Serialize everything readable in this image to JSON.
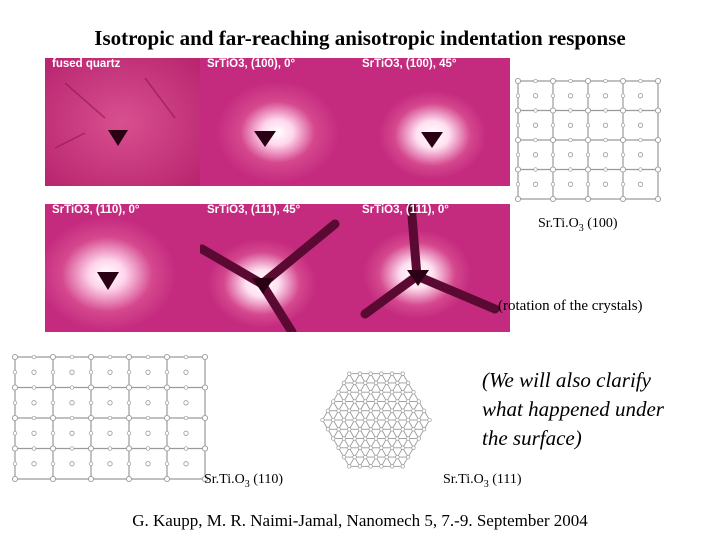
{
  "title": "Isotropic and far-reaching anisotropic indentation response",
  "panels": [
    {
      "label": "fused quartz"
    },
    {
      "label": "SrTiO3, (100), 0°"
    },
    {
      "label": "SrTiO3, (100), 45°"
    },
    {
      "label": "SrTiO3, (110), 0°"
    },
    {
      "label": "SrTiO3, (111), 45°"
    },
    {
      "label": "SrTiO3, (111), 0°"
    }
  ],
  "lattice_captions": {
    "c100": {
      "base": "Sr.Ti.O",
      "sub": "3",
      "rest": " (100)"
    },
    "c110": {
      "base": "Sr.Ti.O",
      "sub": "3",
      "rest": " (110)"
    },
    "c111": {
      "base": "Sr.Ti.O",
      "sub": "3",
      "rest": " (111)"
    }
  },
  "rotation_note": "(rotation of the crystals)",
  "surface_note": [
    "(We will also clarify",
    "what happened under",
    "the surface)"
  ],
  "footer": "G. Kaupp, M. R. Naimi-Jamal, Nanomech 5, 7.-9. September 2004",
  "colors": {
    "micrograph": "#c42a7e",
    "lattice": "#9a9a9a"
  }
}
